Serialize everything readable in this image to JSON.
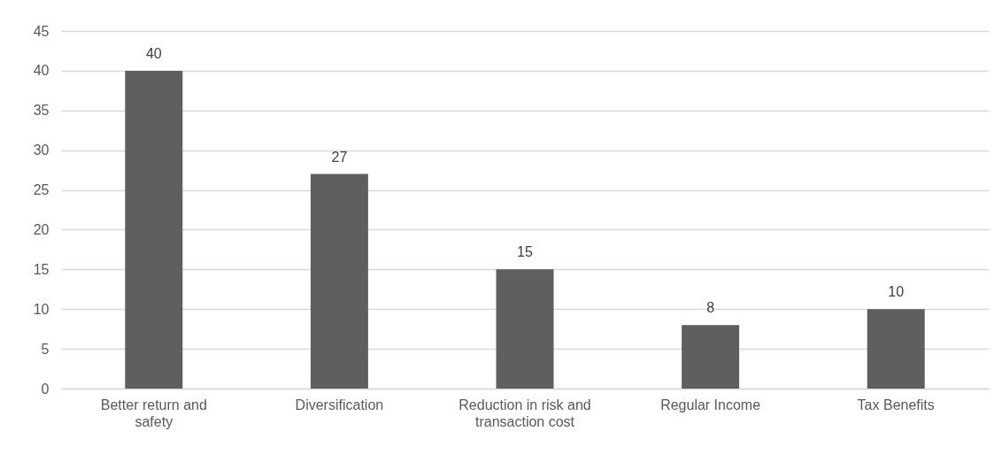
{
  "chart_data": {
    "type": "bar",
    "categories": [
      "Better return and safety",
      "Diversification",
      "Reduction in risk and transaction cost",
      "Regular Income",
      "Tax Benefits"
    ],
    "values": [
      40,
      27,
      15,
      8,
      10
    ],
    "color": "#5f5f5f",
    "ylim": [
      0,
      45
    ],
    "yticks": [
      0,
      5,
      10,
      15,
      20,
      25,
      30,
      35,
      40,
      45
    ],
    "grid": "y",
    "data_labels": true
  }
}
